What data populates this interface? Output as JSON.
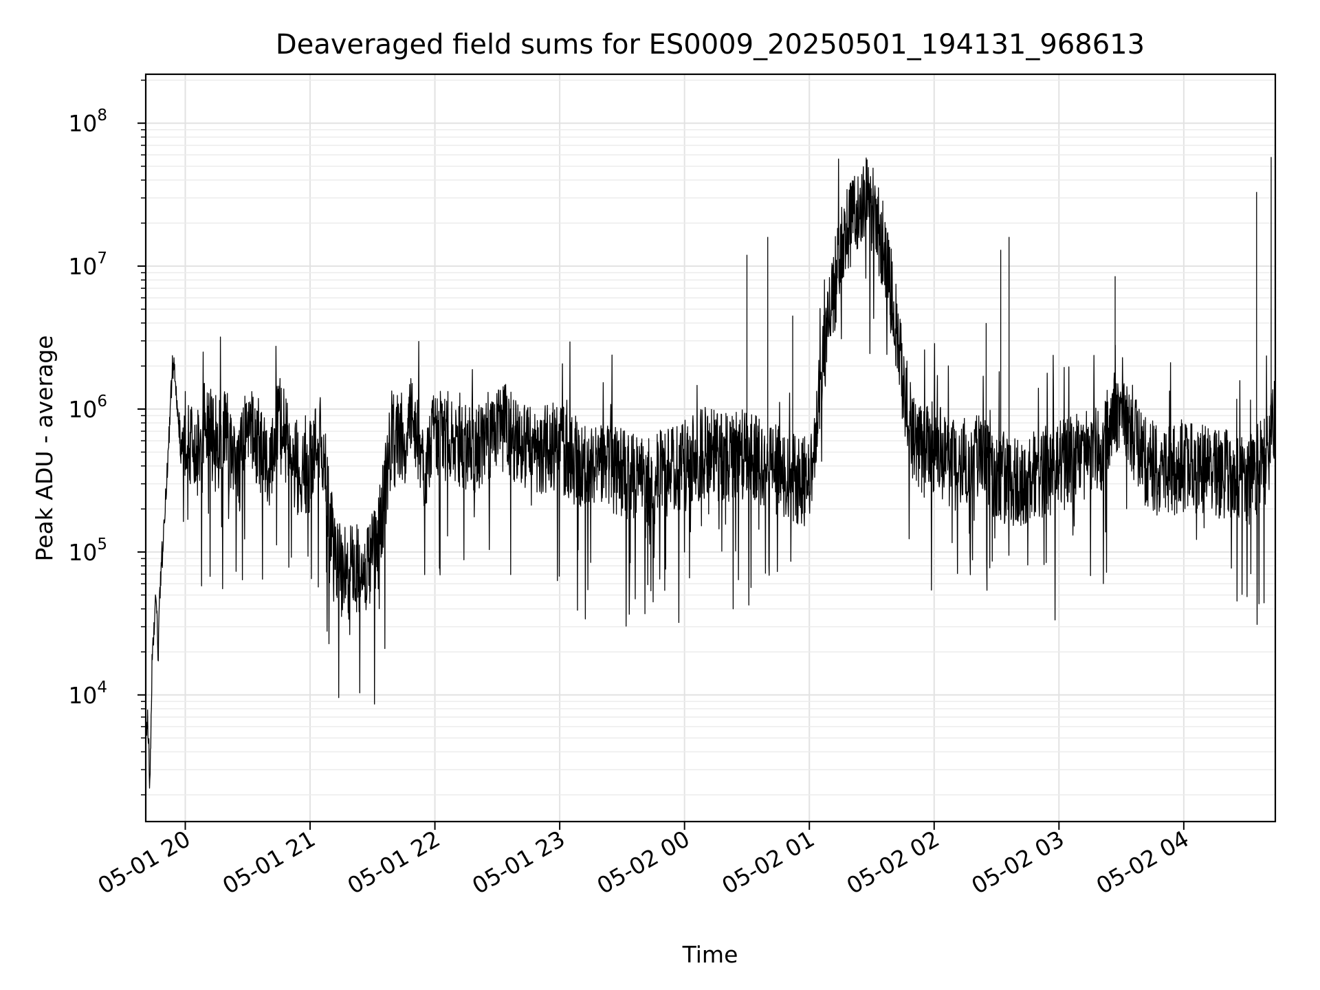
{
  "chart_data": {
    "type": "line",
    "title": "Deaveraged field sums for ES0009_20250501_194131_968613",
    "xlabel": "Time",
    "ylabel": "Peak ADU - average",
    "yscale": "log",
    "ylim": [
      1300,
      220000000
    ],
    "xlim": [
      "05-01 19:41",
      "05-02 04:44"
    ],
    "grid": true,
    "line_color": "#000000",
    "x_ticks": [
      "05-01 20",
      "05-01 21",
      "05-01 22",
      "05-01 23",
      "05-02 00",
      "05-02 01",
      "05-02 02",
      "05-02 03",
      "05-02 04"
    ],
    "y_ticks": [
      {
        "base": "10",
        "exp": "4",
        "value": 10000
      },
      {
        "base": "10",
        "exp": "5",
        "value": 100000
      },
      {
        "base": "10",
        "exp": "6",
        "value": 1000000
      },
      {
        "base": "10",
        "exp": "7",
        "value": 10000000
      },
      {
        "base": "10",
        "exp": "8",
        "value": 100000000
      }
    ],
    "series": [
      {
        "x": [
          "05-01 19:41",
          "05-01 19:42",
          "05-01 19:43",
          "05-01 19:44",
          "05-01 19:45",
          "05-01 19:46",
          "05-01 19:47",
          "05-01 19:48",
          "05-01 19:49",
          "05-01 19:50",
          "05-01 19:52",
          "05-01 19:54",
          "05-01 19:56",
          "05-01 19:58",
          "05-01 20:00",
          "05-01 20:05",
          "05-01 20:10",
          "05-01 20:15",
          "05-01 20:20",
          "05-01 20:25",
          "05-01 20:30",
          "05-01 20:35",
          "05-01 20:40",
          "05-01 20:45",
          "05-01 20:50",
          "05-01 20:55",
          "05-01 21:00",
          "05-01 21:05",
          "05-01 21:10",
          "05-01 21:15",
          "05-01 21:20",
          "05-01 21:25",
          "05-01 21:30",
          "05-01 21:35",
          "05-01 21:40",
          "05-01 21:45",
          "05-01 21:50",
          "05-01 21:55",
          "05-01 22:00",
          "05-01 22:10",
          "05-01 22:20",
          "05-01 22:30",
          "05-01 22:40",
          "05-01 22:50",
          "05-01 23:00",
          "05-01 23:10",
          "05-01 23:20",
          "05-01 23:30",
          "05-01 23:40",
          "05-01 23:50",
          "05-02 00:00",
          "05-02 00:10",
          "05-02 00:20",
          "05-02 00:30",
          "05-02 00:40",
          "05-02 00:50",
          "05-02 01:00",
          "05-02 01:05",
          "05-02 01:10",
          "05-02 01:15",
          "05-02 01:20",
          "05-02 01:25",
          "05-02 01:30",
          "05-02 01:35",
          "05-02 01:40",
          "05-02 01:45",
          "05-02 01:50",
          "05-02 01:55",
          "05-02 02:00",
          "05-02 02:10",
          "05-02 02:20",
          "05-02 02:30",
          "05-02 02:40",
          "05-02 02:50",
          "05-02 03:00",
          "05-02 03:10",
          "05-02 03:20",
          "05-02 03:30",
          "05-02 03:40",
          "05-02 03:50",
          "05-02 04:00",
          "05-02 04:10",
          "05-02 04:20",
          "05-02 04:30",
          "05-02 04:40",
          "05-02 04:44"
        ],
        "y": [
          4500,
          7000,
          2200,
          15000,
          30000,
          45000,
          20000,
          60000,
          100000,
          150000,
          600000,
          2200000,
          1200000,
          500000,
          700000,
          400000,
          900000,
          500000,
          700000,
          300000,
          800000,
          600000,
          400000,
          900000,
          500000,
          350000,
          400000,
          700000,
          150000,
          70000,
          80000,
          70000,
          90000,
          200000,
          800000,
          600000,
          900000,
          400000,
          700000,
          600000,
          500000,
          800000,
          600000,
          500000,
          550000,
          400000,
          450000,
          350000,
          300000,
          350000,
          400000,
          500000,
          450000,
          500000,
          400000,
          350000,
          300000,
          1500000,
          5000000,
          12000000,
          20000000,
          30000000,
          25000000,
          15000000,
          6000000,
          1500000,
          600000,
          500000,
          550000,
          400000,
          500000,
          350000,
          300000,
          350000,
          400000,
          450000,
          500000,
          1200000,
          450000,
          350000,
          400000,
          380000,
          350000,
          300000,
          450000,
          900000
        ]
      }
    ]
  }
}
